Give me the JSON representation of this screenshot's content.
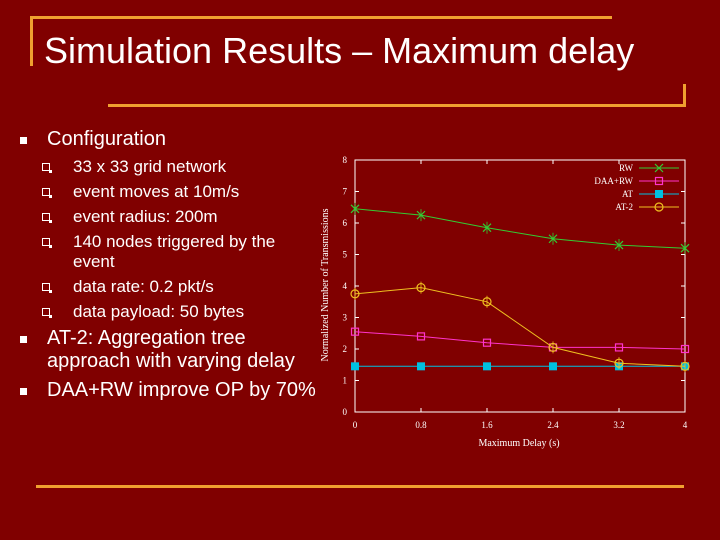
{
  "slide": {
    "title": "Simulation Results – Maximum delay",
    "bullets": [
      {
        "text": "Configuration",
        "sub": [
          "33 x 33 grid network",
          "event moves at 10m/s",
          "event radius: 200m",
          "140 nodes triggered by the event",
          "data rate: 0.2 pkt/s",
          "data payload: 50 bytes"
        ]
      },
      {
        "text": "AT-2: Aggregation tree approach with varying delay",
        "sub": []
      },
      {
        "text": "DAA+RW improve OP by 70%",
        "sub": []
      }
    ]
  },
  "colors": {
    "background": "#800000",
    "accent": "#f0a030",
    "rw": "#33cc33",
    "daa_rw": "#ff33cc",
    "at": "#00c0e0",
    "at2": "#f0c020"
  },
  "chart_data": {
    "type": "line",
    "xlabel": "Maximum Delay (s)",
    "ylabel": "Normalized Number of Transmissions",
    "xlim": [
      0,
      4
    ],
    "ylim": [
      0,
      8
    ],
    "x_ticks": [
      "0",
      "0.8",
      "1.6",
      "2.4",
      "3.2",
      "4"
    ],
    "y_ticks": [
      "0",
      "1",
      "2",
      "3",
      "4",
      "5",
      "6",
      "7",
      "8"
    ],
    "legend_position": "top-right",
    "grid": false,
    "series": [
      {
        "name": "RW",
        "marker": "x",
        "x": [
          0,
          0.8,
          1.6,
          2.4,
          3.2,
          4
        ],
        "y": [
          6.45,
          6.25,
          5.85,
          5.5,
          5.3,
          5.2
        ]
      },
      {
        "name": "DAA+RW",
        "marker": "square-open",
        "x": [
          0,
          0.8,
          1.6,
          2.4,
          3.2,
          4
        ],
        "y": [
          2.55,
          2.4,
          2.2,
          2.05,
          2.05,
          2.0
        ]
      },
      {
        "name": "AT",
        "marker": "square-filled",
        "x": [
          0,
          0.8,
          1.6,
          2.4,
          3.2,
          4
        ],
        "y": [
          1.45,
          1.45,
          1.45,
          1.45,
          1.45,
          1.45
        ]
      },
      {
        "name": "AT-2",
        "marker": "circle-open",
        "x": [
          0,
          0.8,
          1.6,
          2.4,
          3.2,
          4
        ],
        "y": [
          3.75,
          3.95,
          3.5,
          2.05,
          1.55,
          1.45
        ]
      }
    ]
  }
}
